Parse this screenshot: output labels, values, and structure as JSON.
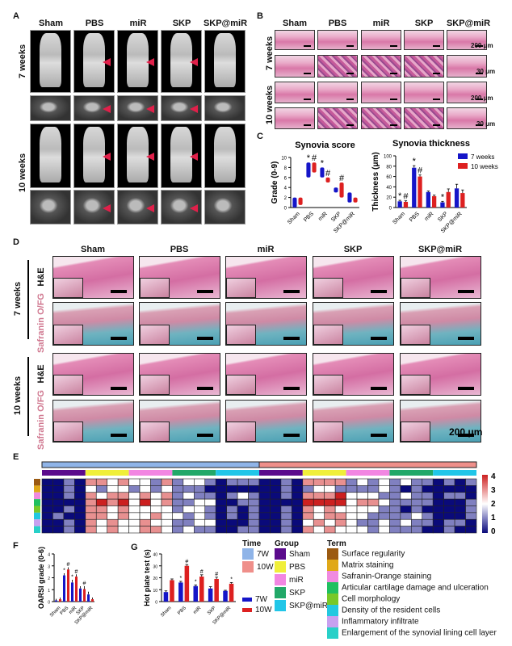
{
  "panels": {
    "A": "A",
    "B": "B",
    "C": "C",
    "D": "D",
    "E": "E",
    "F": "F",
    "G": "G"
  },
  "groups": [
    "Sham",
    "PBS",
    "miR",
    "SKP",
    "SKP@miR"
  ],
  "times": {
    "w7": "7 weeks",
    "w10": "10 weeks"
  },
  "stains": {
    "he": "H&E",
    "saf": "Safranin O/FG"
  },
  "scalebars": {
    "b1": "200 μm",
    "b2": "30 μm",
    "d": "200 μm"
  },
  "colors": {
    "blue": "#1515c8",
    "red": "#dd2020",
    "time7": "#8fb4e8",
    "time10": "#ef8f8a",
    "group": [
      "#5b0b8c",
      "#f0ef3a",
      "#f286e2",
      "#22a868",
      "#21c6e8"
    ],
    "term": [
      "#9b5a12",
      "#e0a818",
      "#f08ae0",
      "#20c060",
      "#78c828",
      "#22c8e0",
      "#c8a0f0",
      "#28d0c8"
    ]
  },
  "legend": {
    "time_title": "Time",
    "time": [
      "7W",
      "10W"
    ],
    "group_title": "Group",
    "term_title": "Term",
    "terms": [
      "Surface regularity",
      "Matrix staining",
      "Safranin-Orange staining",
      "Articular cartilage damage and ulceration",
      "Cell morphology",
      "Density of the resident cells",
      "Inflammatory infiltrate",
      "Enlargement of the synovial lining cell layer"
    ],
    "bars": [
      "7W",
      "10W"
    ]
  },
  "chart_data": [
    {
      "id": "synovia-score",
      "type": "bar",
      "title": "Synovia score",
      "ylabel": "Grade (0-9)",
      "ylim": [
        0,
        10
      ],
      "yticks": [
        0,
        2,
        4,
        6,
        8,
        10
      ],
      "categories": [
        "Sham",
        "PBS",
        "miR",
        "SKP",
        "SKP@miR"
      ],
      "series": [
        {
          "name": "7 weeks",
          "range": [
            [
              0,
              2
            ],
            [
              6,
              9
            ],
            [
              6,
              8
            ],
            [
              3,
              4
            ],
            [
              1,
              3
            ]
          ]
        },
        {
          "name": "10 weeks",
          "range": [
            [
              0.5,
              2
            ],
            [
              7,
              9
            ],
            [
              5,
              6
            ],
            [
              2,
              5
            ],
            [
              1,
              2
            ]
          ]
        }
      ],
      "annotations": [
        {
          "cat": "PBS",
          "series": "7 weeks",
          "text": "*"
        },
        {
          "cat": "PBS",
          "series": "10 weeks",
          "text": "#"
        },
        {
          "cat": "miR",
          "series": "7 weeks",
          "text": "*"
        },
        {
          "cat": "miR",
          "series": "10 weeks",
          "text": "#"
        },
        {
          "cat": "SKP",
          "series": "10 weeks",
          "text": "#"
        }
      ]
    },
    {
      "id": "synovia-thickness",
      "type": "bar",
      "title": "Synovia thickness",
      "ylabel": "Thickness (μm)",
      "ylim": [
        0,
        100
      ],
      "yticks": [
        0,
        20,
        40,
        60,
        80,
        100
      ],
      "categories": [
        "Sham",
        "PBS",
        "miR",
        "SKP",
        "SKP@miR"
      ],
      "legend": [
        "7 weeks",
        "10 weeks"
      ],
      "legend_position": "top-right",
      "series": [
        {
          "name": "7 weeks",
          "values": [
            12,
            77,
            30,
            10,
            37
          ],
          "err": [
            2,
            4,
            2,
            2,
            8
          ]
        },
        {
          "name": "10 weeks",
          "values": [
            11,
            60,
            22,
            30,
            28
          ],
          "err": [
            2,
            3,
            2,
            6,
            6
          ]
        }
      ],
      "annotations": [
        {
          "cat": "Sham",
          "series": "7 weeks",
          "text": "*"
        },
        {
          "cat": "Sham",
          "series": "10 weeks",
          "text": "#"
        },
        {
          "cat": "PBS",
          "series": "7 weeks",
          "text": "*"
        },
        {
          "cat": "PBS",
          "series": "10 weeks",
          "text": "#"
        },
        {
          "cat": "SKP",
          "series": "7 weeks",
          "text": "*"
        }
      ]
    },
    {
      "id": "heatmap",
      "type": "heatmap",
      "zlim": [
        0,
        4
      ],
      "zticks": [
        4,
        3,
        2,
        1,
        0
      ],
      "columns_time": [
        "7W",
        "10W"
      ],
      "columns_per_group": 4,
      "rows": [
        "Surface regularity",
        "Matrix staining",
        "Safranin-Orange staining",
        "Articular cartilage damage and ulceration",
        "Cell morphology",
        "Density of the resident cells",
        "Inflammatory infiltrate",
        "Enlargement of the synovial lining cell layer"
      ],
      "values": [
        "0010332322131221011100103333121212110101",
        "0010212212121110000000101221111210100000",
        "0010323323231211012100103334222112110110",
        "0000343424231122001100004444233211110001",
        "0010332322221221010100103232222110100001",
        "0100332322322121010100103233221111210001",
        "0010323223221122000100102323211212110110",
        "0010323223321211001100103232221211100100"
      ]
    },
    {
      "id": "oarsi",
      "type": "bar",
      "ylabel": "OARSI grade (0-6)",
      "ylim": [
        0,
        4
      ],
      "yticks": [
        0,
        1,
        2,
        3,
        4
      ],
      "categories": [
        "Sham",
        "PBS",
        "miR",
        "SKP",
        "SKP@miR"
      ],
      "series": [
        {
          "name": "7W",
          "values": [
            0.1,
            2.2,
            1.6,
            1.1,
            0.6
          ],
          "err": [
            0.1,
            0.15,
            0.2,
            0.15,
            0.2
          ]
        },
        {
          "name": "10W",
          "values": [
            0.2,
            2.7,
            2.1,
            1.05,
            0.2
          ],
          "err": [
            0.1,
            0.15,
            0.15,
            0.2,
            0.1
          ]
        }
      ],
      "annotations": [
        {
          "cat": "PBS",
          "series": "7W",
          "text": "*"
        },
        {
          "cat": "PBS",
          "series": "10W",
          "text": "#"
        },
        {
          "cat": "miR",
          "series": "7W",
          "text": "*"
        },
        {
          "cat": "miR",
          "series": "10W",
          "text": "#"
        },
        {
          "cat": "SKP",
          "series": "10W",
          "text": "#"
        }
      ]
    },
    {
      "id": "hot-plate",
      "type": "bar",
      "ylabel": "Hot plate test (s)",
      "ylim": [
        0,
        40
      ],
      "yticks": [
        0,
        10,
        20,
        30,
        40
      ],
      "categories": [
        "Sham",
        "PBS",
        "miR",
        "SKP",
        "SKP@miR"
      ],
      "series": [
        {
          "name": "7W",
          "values": [
            8,
            16,
            13,
            11,
            9
          ],
          "err": [
            1,
            1,
            1,
            1.5,
            0.5
          ]
        },
        {
          "name": "10W",
          "values": [
            18,
            30,
            21,
            19,
            15
          ],
          "err": [
            1,
            1,
            1.5,
            1.5,
            1
          ]
        }
      ],
      "annotations": [
        {
          "cat": "PBS",
          "series": "7W",
          "text": "*"
        },
        {
          "cat": "PBS",
          "series": "10W",
          "text": "#"
        },
        {
          "cat": "miR",
          "series": "7W",
          "text": "*"
        },
        {
          "cat": "miR",
          "series": "10W",
          "text": "#"
        },
        {
          "cat": "SKP",
          "series": "10W",
          "text": "#"
        },
        {
          "cat": "SKP@miR",
          "series": "10W",
          "text": "*"
        }
      ]
    }
  ]
}
